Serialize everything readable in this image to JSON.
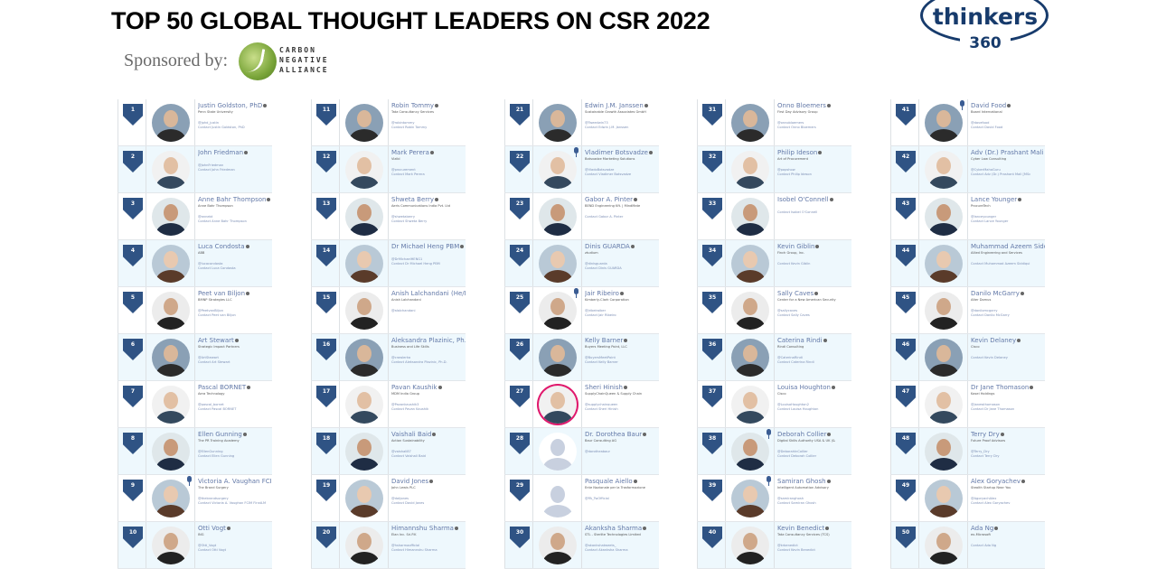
{
  "header": {
    "title": "TOP 50 GLOBAL THOUGHT LEADERS ON CSR 2022",
    "sponsored_label": "Sponsored by:",
    "sponsor_logo_text": [
      "CARBON",
      "NEGATIVE",
      "ALLIANCE"
    ],
    "brand_logo_word": "thinkers",
    "brand_logo_number": "360"
  },
  "colors": {
    "badge": "#2f5384",
    "name_link": "#6379a8",
    "alt_row": "#eef8fd",
    "brand": "#173b6c",
    "highlight_ring": "#e0186c"
  },
  "leaders": [
    {
      "rank": "1",
      "name": "Justin Goldston, PhD",
      "org": "Penn State University",
      "handle": "@jphd_justin",
      "contact": "Contact Justin Goldston, PhD",
      "verified": true
    },
    {
      "rank": "2",
      "name": "John Friedman",
      "org": "",
      "handle": "@JohnFriedman",
      "contact": "Contact John Friedman",
      "verified": true
    },
    {
      "rank": "3",
      "name": "Anne Bahr Thompson",
      "org": "Anne Bahr Thompson",
      "handle": "@annebt",
      "contact": "Contact Anne Bahr Thompson",
      "verified": true
    },
    {
      "rank": "4",
      "name": "Luca Condosta",
      "org": "ABB",
      "handle": "@lucacondosta",
      "contact": "Contact Luca Condosta",
      "verified": true
    },
    {
      "rank": "5",
      "name": "Peet van Biljon",
      "org": "BMNP Strategies LLC",
      "handle": "@PeetvanBiljon",
      "contact": "Contact Peet van Biljon",
      "verified": true
    },
    {
      "rank": "6",
      "name": "Art Stewart",
      "org": "Strategic Impact Partners",
      "handle": "@ArtStewart",
      "contact": "Contact Art Stewart",
      "verified": true
    },
    {
      "rank": "7",
      "name": "Pascal BORNET",
      "org": "Aera Technology",
      "handle": "@pascal_bornet",
      "contact": "Contact Pascal BORNET",
      "verified": true
    },
    {
      "rank": "8",
      "name": "Ellen Gunning",
      "org": "The PR Training Academy",
      "handle": "@EllenGunning",
      "contact": "Contact Ellen Gunning",
      "verified": true
    },
    {
      "rank": "9",
      "name": "Victoria A. Vaughan FCIM",
      "org": "The Brand Surgery",
      "handle": "@thebrandsurgery",
      "contact": "Contact Victoria A. Vaughan FCIM FInstLM",
      "verified": false,
      "mic": true
    },
    {
      "rank": "10",
      "name": "Otti Vogt",
      "org": "ING",
      "handle": "@Otti_Vogt",
      "contact": "Contact Otti Vogt",
      "verified": true
    },
    {
      "rank": "11",
      "name": "Robin Tommy",
      "org": "Tata Consultancy Services",
      "handle": "@robintommy",
      "contact": "Contact Robin Tommy",
      "verified": true
    },
    {
      "rank": "12",
      "name": "Mark Perera",
      "org": "Vizibl",
      "handle": "@procurement",
      "contact": "Contact Mark Perera",
      "verified": true
    },
    {
      "rank": "13",
      "name": "Shweta Berry",
      "org": "Aeris Communications India Pvt. Ltd",
      "handle": "@shwetaberry",
      "contact": "Contact Shweta Berry",
      "verified": true
    },
    {
      "rank": "14",
      "name": "Dr Michael Heng PBM",
      "org": "",
      "handle": "@DrMichaelHENG1",
      "contact": "Contact Dr Michael Heng PBM",
      "verified": true
    },
    {
      "rank": "15",
      "name": "Anish Lalchandani (He/Him)",
      "org": "Anish Lalchandani",
      "handle": "@alalchandani",
      "contact": "",
      "verified": false
    },
    {
      "rank": "16",
      "name": "Aleksandra Plazinic, Ph.D.",
      "org": "Business and Life Skills",
      "handle": "@crawlerka",
      "contact": "Contact Aleksandra Plazinic, Ph.D.",
      "verified": false
    },
    {
      "rank": "17",
      "name": "Pavan Kaushik",
      "org": "MDM India Group",
      "handle": "@Pavankaushik3",
      "contact": "Contact Pavan Kaushik",
      "verified": true
    },
    {
      "rank": "18",
      "name": "Vaishali Baid",
      "org": "Action Sustainability",
      "handle": "@vaishali87",
      "contact": "Contact Vaishali Baid",
      "verified": true
    },
    {
      "rank": "19",
      "name": "David Jones",
      "org": "John Lewis PLC",
      "handle": "@dotjones",
      "contact": "Contact David Jones",
      "verified": true
    },
    {
      "rank": "20",
      "name": "Himannshu Sharma",
      "org": "Elan Inc. Sri.P.K",
      "handle": "@hsharmaofficial",
      "contact": "Contact Himannshu Sharma",
      "verified": true
    },
    {
      "rank": "21",
      "name": "Edwin J.M. Janssen",
      "org": "Sustainable Growth Associates GmbH",
      "handle": "@Tweedwin73",
      "contact": "Contact Edwin J.M. Janssen",
      "verified": true
    },
    {
      "rank": "22",
      "name": "Vladimer Botsvadze",
      "org": "Botsvadze Marketing Solutions",
      "handle": "@VladoBotsvadze",
      "contact": "Contact Vladimer Botsvadze",
      "verified": true,
      "mic": true
    },
    {
      "rank": "23",
      "name": "Gabor A. Pinter",
      "org": "BEND Engineering Kft. | MindMate",
      "handle": "",
      "contact": "Contact Gabor A. Pinter",
      "verified": true
    },
    {
      "rank": "24",
      "name": "Dinis GUARDA",
      "org": "ztudium",
      "handle": "@dinisguarda",
      "contact": "Contact Dinis GUARDA",
      "verified": true
    },
    {
      "rank": "25",
      "name": "Jair Ribeiro",
      "org": "Kimberly-Clark Corporation",
      "handle": "@jribeiroiber",
      "contact": "Contact Jair Ribeiro",
      "verified": true,
      "mic": true
    },
    {
      "rank": "26",
      "name": "Kelly Barner",
      "org": "Buyers Meeting Point, LLC",
      "handle": "@BuyersMeetPoint",
      "contact": "Contact Kelly Barner",
      "verified": true
    },
    {
      "rank": "27",
      "name": "Sheri Hinish",
      "org": "SupplyChainQueen & Supply Chain",
      "handle": "@supplychainqueen",
      "contact": "Contact Sheri Hinish",
      "verified": true,
      "ring": true
    },
    {
      "rank": "28",
      "name": "Dr. Dorothea Baur",
      "org": "Baur Consulting AG",
      "handle": "@dorotheabaur",
      "contact": "",
      "verified": true,
      "placeholder": true
    },
    {
      "rank": "29",
      "name": "Pasquale Aiello",
      "org": "Ente Nazionale per la Trasformazione",
      "handle": "@PA_TwOfficial",
      "contact": "",
      "verified": true,
      "placeholder": true
    },
    {
      "rank": "30",
      "name": "Akanksha Sharma",
      "org": "STL - Sterlite Technologies Limited",
      "handle": "@akankshatweets_",
      "contact": "Contact Akanksha Sharma",
      "verified": true
    },
    {
      "rank": "31",
      "name": "Onno Bloemers",
      "org": "First Day Advisory Group",
      "handle": "@onnobloemers",
      "contact": "Contact Onno Bloemers",
      "verified": true
    },
    {
      "rank": "32",
      "name": "Philip Ideson",
      "org": "Art of Procurement",
      "handle": "@popshow",
      "contact": "Contact Philip Ideson",
      "verified": true
    },
    {
      "rank": "33",
      "name": "Isobel O'Connell",
      "org": "",
      "handle": "",
      "contact": "Contact Isobel O'Connell",
      "verified": true
    },
    {
      "rank": "34",
      "name": "Kevin Giblin",
      "org": "Finch Group, Inc.",
      "handle": "",
      "contact": "Contact Kevin Giblin",
      "verified": true
    },
    {
      "rank": "35",
      "name": "Sally Caves",
      "org": "Center for a New American Security",
      "handle": "@sallycaves",
      "contact": "Contact Sally Caves",
      "verified": true
    },
    {
      "rank": "36",
      "name": "Caterina Rindi",
      "org": "Rindi Consulting",
      "handle": "@CaterinaRindi",
      "contact": "Contact Caterina Rindi",
      "verified": true
    },
    {
      "rank": "37",
      "name": "Louisa Houghton",
      "org": "Cisco",
      "handle": "@LouisaHoughton2",
      "contact": "Contact Louisa Houghton",
      "verified": true
    },
    {
      "rank": "38",
      "name": "Deborah Collier",
      "org": "Digital Skills Authority USA & UK (&",
      "handle": "@DeborahInCollier",
      "contact": "Contact Deborah Collier",
      "verified": true,
      "mic": true
    },
    {
      "rank": "39",
      "name": "Samiran Ghosh",
      "org": "Intelligent Automation Advisory",
      "handle": "@samiranghosh",
      "contact": "Contact Samiran Ghosh",
      "verified": true,
      "mic": true
    },
    {
      "rank": "40",
      "name": "Kevin Benedict",
      "org": "Tata Consultancy Services (TCS)",
      "handle": "@krbenedict",
      "contact": "Contact Kevin Benedict",
      "verified": true
    },
    {
      "rank": "41",
      "name": "David Food",
      "org": "Board International",
      "handle": "@davefood",
      "contact": "Contact David Food",
      "verified": true,
      "mic": true
    },
    {
      "rank": "42",
      "name": "Adv (Dr.) Prashant Mali",
      "org": "Cyber Law Consulting",
      "handle": "@CyberMahaGuru",
      "contact": "Contact Adv (Dr.) Prashant Mali [MSc",
      "verified": false
    },
    {
      "rank": "43",
      "name": "Lance Younger",
      "org": "ProcureTech",
      "handle": "@lanceyounger",
      "contact": "Contact Lance Younger",
      "verified": true
    },
    {
      "rank": "44",
      "name": "Muhammad Azeem Siddiqui",
      "org": "Allied Engineering and Services",
      "handle": "",
      "contact": "Contact Muhammad Azeem Siddiqui",
      "verified": false
    },
    {
      "rank": "45",
      "name": "Danilo McGarry",
      "org": "Alter Domus",
      "handle": "@danilomcgarry",
      "contact": "Contact Danilo McGarry",
      "verified": true
    },
    {
      "rank": "46",
      "name": "Kevin Delaney",
      "org": "Cisco",
      "handle": "",
      "contact": "Contact Kevin Delaney",
      "verified": true
    },
    {
      "rank": "47",
      "name": "Dr Jane Thomason",
      "org": "Kasei Holdings",
      "handle": "@janewthomason",
      "contact": "Contact Dr Jane Thomason",
      "verified": true
    },
    {
      "rank": "48",
      "name": "Terry Dry",
      "org": "Future Proof Advisors",
      "handle": "@Terry_Dry",
      "contact": "Contact Terry Dry",
      "verified": true
    },
    {
      "rank": "49",
      "name": "Alex Goryachev",
      "org": "Stealth Startup Near You",
      "handle": "@AgoryachAlex",
      "contact": "Contact Alex Goryachev",
      "verified": true
    },
    {
      "rank": "50",
      "name": "Ada Ng",
      "org": "ex-Microsoft",
      "handle": "",
      "contact": "Contact Ada Ng",
      "verified": true
    }
  ]
}
